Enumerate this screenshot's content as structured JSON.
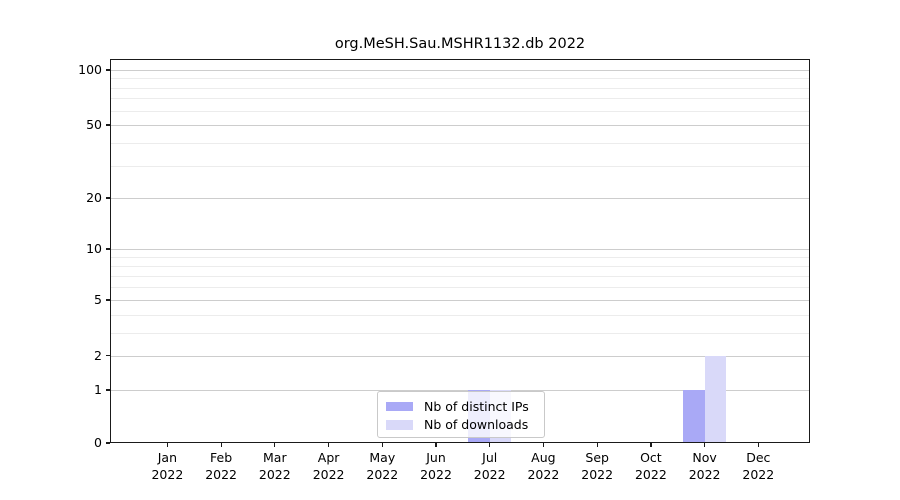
{
  "chart_data": {
    "type": "bar",
    "title": "org.MeSH.Sau.MSHR1132.db 2022",
    "x_year": "2022",
    "categories": [
      "Jan",
      "Feb",
      "Mar",
      "Apr",
      "May",
      "Jun",
      "Jul",
      "Aug",
      "Sep",
      "Oct",
      "Nov",
      "Dec"
    ],
    "series": [
      {
        "name": "Nb of distinct IPs",
        "color": "#a9a9f6",
        "values": [
          0,
          0,
          0,
          0,
          0,
          0,
          1,
          0,
          0,
          0,
          1,
          0
        ]
      },
      {
        "name": "Nb of downloads",
        "color": "#d9d9f9",
        "values": [
          0,
          0,
          0,
          0,
          0,
          0,
          1,
          0,
          0,
          0,
          2,
          0
        ]
      }
    ],
    "ylim": [
      0,
      100
    ],
    "y_major_ticks": [
      0,
      1,
      2,
      5,
      10,
      20,
      50,
      100
    ],
    "y_minor_ticks": [
      3,
      4,
      6,
      7,
      8,
      9,
      30,
      40,
      60,
      70,
      80,
      90
    ],
    "y_scale": "log-like",
    "grid": "horizontal",
    "legend_position": "inside-bottom-center"
  }
}
